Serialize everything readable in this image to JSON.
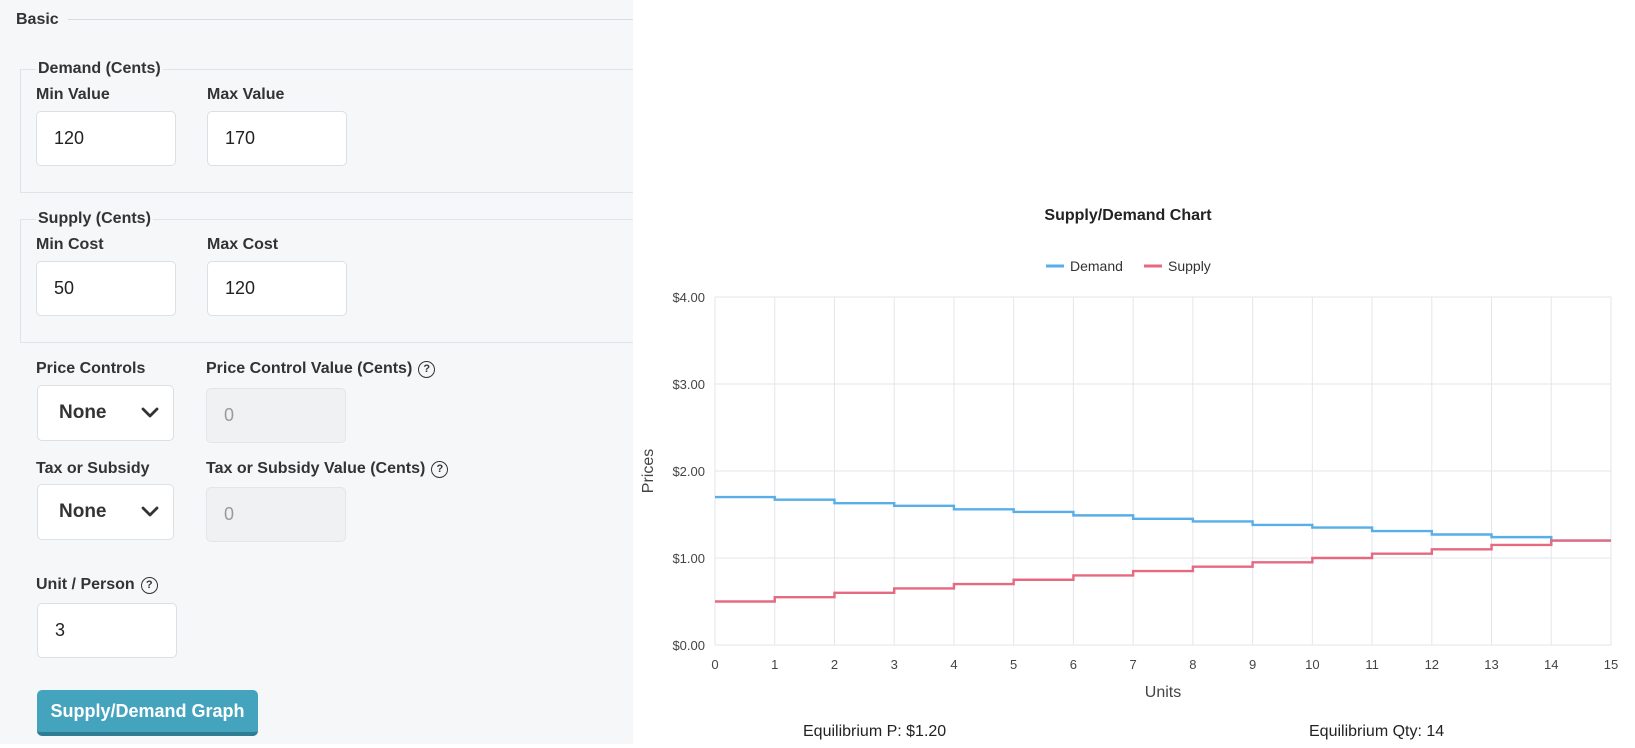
{
  "form": {
    "section_title": "Basic",
    "demand": {
      "legend": "Demand (Cents)",
      "min_label": "Min Value",
      "min_value": "120",
      "max_label": "Max Value",
      "max_value": "170"
    },
    "supply": {
      "legend": "Supply (Cents)",
      "min_label": "Min Cost",
      "min_value": "50",
      "max_label": "Max Cost",
      "max_value": "120"
    },
    "price_controls": {
      "label": "Price Controls",
      "selected": "None",
      "value_label": "Price Control Value (Cents)",
      "value_placeholder": "0"
    },
    "tax_subsidy": {
      "label": "Tax or Subsidy",
      "selected": "None",
      "value_label": "Tax or Subsidy Value (Cents)",
      "value_placeholder": "0"
    },
    "unit_person": {
      "label": "Unit / Person",
      "value": "3"
    },
    "help_glyph": "?",
    "graph_button": "Supply/Demand Graph"
  },
  "colors": {
    "demand": "#57aee8",
    "supply": "#e56a80",
    "button": "#44a4be",
    "grid": "#e3e6ea"
  },
  "icons": [
    "help-icon",
    "chevron-down-icon"
  ],
  "equilibrium": {
    "price": "Equilibrium P: $1.20",
    "qty": "Equilibrium Qty: 14"
  },
  "chart_data": {
    "type": "line",
    "title": "Supply/Demand Chart",
    "xlabel": "Units",
    "ylabel": "Prices",
    "xlim": [
      0,
      15
    ],
    "ylim": [
      0,
      4
    ],
    "x_ticks": [
      "0",
      "1",
      "2",
      "3",
      "4",
      "5",
      "6",
      "7",
      "8",
      "9",
      "10",
      "11",
      "12",
      "13",
      "14",
      "15"
    ],
    "y_ticks": [
      "$0.00",
      "$1.00",
      "$2.00",
      "$3.00",
      "$4.00"
    ],
    "y_tick_values": [
      0,
      1,
      2,
      3,
      4
    ],
    "grid": true,
    "legend_position": "top-center",
    "step": true,
    "series": [
      {
        "name": "Demand",
        "x": [
          0,
          1,
          2,
          3,
          4,
          5,
          6,
          7,
          8,
          9,
          10,
          11,
          12,
          13,
          14
        ],
        "values": [
          1.7,
          1.67,
          1.63,
          1.6,
          1.56,
          1.53,
          1.49,
          1.45,
          1.42,
          1.38,
          1.35,
          1.31,
          1.27,
          1.24,
          1.2
        ]
      },
      {
        "name": "Supply",
        "x": [
          0,
          1,
          2,
          3,
          4,
          5,
          6,
          7,
          8,
          9,
          10,
          11,
          12,
          13,
          14
        ],
        "values": [
          0.5,
          0.55,
          0.6,
          0.65,
          0.7,
          0.75,
          0.8,
          0.85,
          0.9,
          0.95,
          1.0,
          1.05,
          1.1,
          1.15,
          1.2
        ]
      }
    ]
  }
}
